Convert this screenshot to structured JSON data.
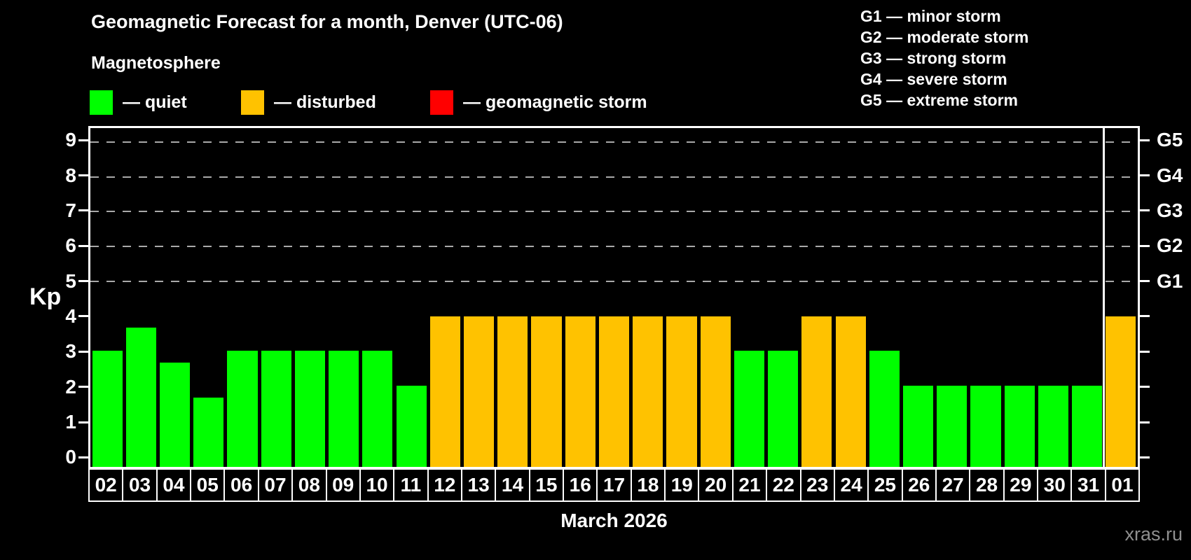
{
  "title": "Geomagnetic Forecast for a month, Denver (UTC-06)",
  "subtitle": "Magnetosphere",
  "legend": {
    "items": [
      {
        "key": "quiet",
        "label": "— quiet",
        "color": "#00ff00"
      },
      {
        "key": "disturbed",
        "label": "— disturbed",
        "color": "#ffc200"
      },
      {
        "key": "storm",
        "label": "— geomagnetic storm",
        "color": "#ff0000"
      }
    ]
  },
  "g_legend": [
    "G1 — minor storm",
    "G2 — moderate storm",
    "G3 — strong storm",
    "G4 — severe storm",
    "G5 — extreme storm"
  ],
  "watermark": "xras.ru",
  "chart_data": {
    "type": "bar",
    "title": "Geomagnetic Forecast for a month, Denver (UTC-06)",
    "xlabel": "March 2026",
    "ylabel": "Kp",
    "ylim": [
      -0.33,
      9.4
    ],
    "yticks": [
      0,
      1,
      2,
      3,
      4,
      5,
      6,
      7,
      8,
      9
    ],
    "gridlines_at": [
      5,
      6,
      7,
      8,
      9
    ],
    "grid": "dashed horizontal at storm levels only",
    "legend_position": "top-left",
    "right_axis": [
      {
        "kp": 5,
        "label": "G1"
      },
      {
        "kp": 6,
        "label": "G2"
      },
      {
        "kp": 7,
        "label": "G3"
      },
      {
        "kp": 8,
        "label": "G4"
      },
      {
        "kp": 9,
        "label": "G5"
      }
    ],
    "categories": [
      "02",
      "03",
      "04",
      "05",
      "06",
      "07",
      "08",
      "09",
      "10",
      "11",
      "12",
      "13",
      "14",
      "15",
      "16",
      "17",
      "18",
      "19",
      "20",
      "21",
      "22",
      "23",
      "24",
      "25",
      "26",
      "27",
      "28",
      "29",
      "30",
      "31",
      "01"
    ],
    "values": [
      3,
      3.67,
      2.67,
      1.67,
      3,
      3,
      3,
      3,
      3,
      2,
      4,
      4,
      4,
      4,
      4,
      4,
      4,
      4,
      4,
      3,
      3,
      4,
      4,
      3,
      2,
      2,
      2,
      2,
      2,
      2,
      4
    ],
    "status": [
      "quiet",
      "quiet",
      "quiet",
      "quiet",
      "quiet",
      "quiet",
      "quiet",
      "quiet",
      "quiet",
      "quiet",
      "disturbed",
      "disturbed",
      "disturbed",
      "disturbed",
      "disturbed",
      "disturbed",
      "disturbed",
      "disturbed",
      "disturbed",
      "quiet",
      "quiet",
      "disturbed",
      "disturbed",
      "quiet",
      "quiet",
      "quiet",
      "quiet",
      "quiet",
      "quiet",
      "quiet",
      "disturbed"
    ],
    "colors": {
      "quiet": "#00ff00",
      "disturbed": "#ffc200",
      "storm": "#ff0000"
    },
    "month_separator_after_index": 29
  }
}
